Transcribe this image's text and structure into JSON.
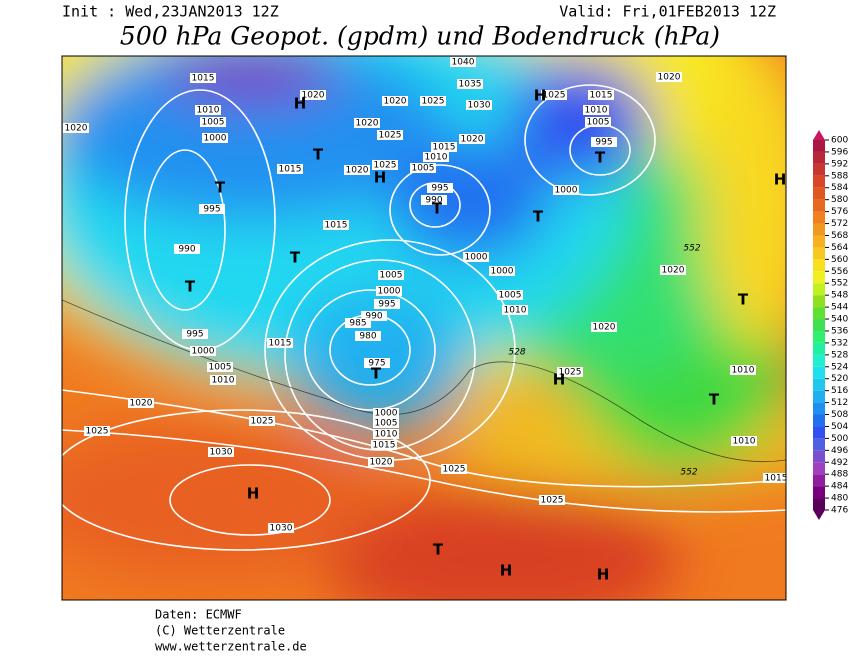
{
  "header": {
    "init": "Init : Wed,23JAN2013 12Z",
    "valid": "Valid: Fri,01FEB2013 12Z",
    "title": "500 hPa Geopot. (gpdm) und Bodendruck (hPa)"
  },
  "isobar_labels": [
    1015,
    1010,
    1005,
    1000,
    995,
    990,
    1020,
    1015,
    1020,
    1025,
    1020,
    1025,
    1020,
    1025,
    1010,
    1015,
    1005,
    995,
    990,
    1015,
    1040,
    1035,
    1030,
    1020,
    1025,
    1015,
    1010,
    1005,
    995,
    1000,
    1020,
    1000,
    1000,
    1005,
    1010,
    1005,
    1000,
    995,
    990,
    985,
    980,
    975,
    1015,
    995,
    1000,
    1005,
    1010,
    1020,
    1025,
    1025,
    1030,
    1000,
    1005,
    1010,
    1015,
    1020,
    1025,
    1030,
    1020,
    1020,
    1025,
    1010,
    1010,
    1015,
    1025,
    1020
  ],
  "contour_labels": [
    552,
    552,
    528
  ],
  "pressure_centers": [
    "T",
    "T",
    "T",
    "T",
    "H",
    "T",
    "T",
    "T",
    "H",
    "H",
    "T",
    "T",
    "H",
    "T",
    "H",
    "T",
    "H",
    "H",
    "H"
  ],
  "colorbar": {
    "ticks": [
      476,
      480,
      484,
      488,
      492,
      496,
      500,
      504,
      508,
      512,
      516,
      520,
      524,
      528,
      532,
      536,
      540,
      544,
      548,
      552,
      556,
      560,
      564,
      568,
      572,
      576,
      580,
      584,
      588,
      592,
      596,
      600
    ],
    "colors": [
      "#5a005a",
      "#78007f",
      "#8f1fa0",
      "#a040c0",
      "#7a50d0",
      "#5060e0",
      "#3050f0",
      "#2070f0",
      "#2090f0",
      "#20b0f0",
      "#20c8f0",
      "#20e0f0",
      "#20f0d0",
      "#20f0a0",
      "#30f070",
      "#40e050",
      "#60e030",
      "#90e020",
      "#c0f020",
      "#f0f020",
      "#f8e020",
      "#f8c820",
      "#f8b020",
      "#f09820",
      "#f08020",
      "#e86820",
      "#e05820",
      "#d84828",
      "#c83830",
      "#b82838",
      "#a81840",
      "#c81860"
    ]
  },
  "footer": {
    "source": "Daten: ECMWF",
    "copyright": "(C) Wetterzentrale",
    "url": "www.wetterzentrale.de"
  }
}
